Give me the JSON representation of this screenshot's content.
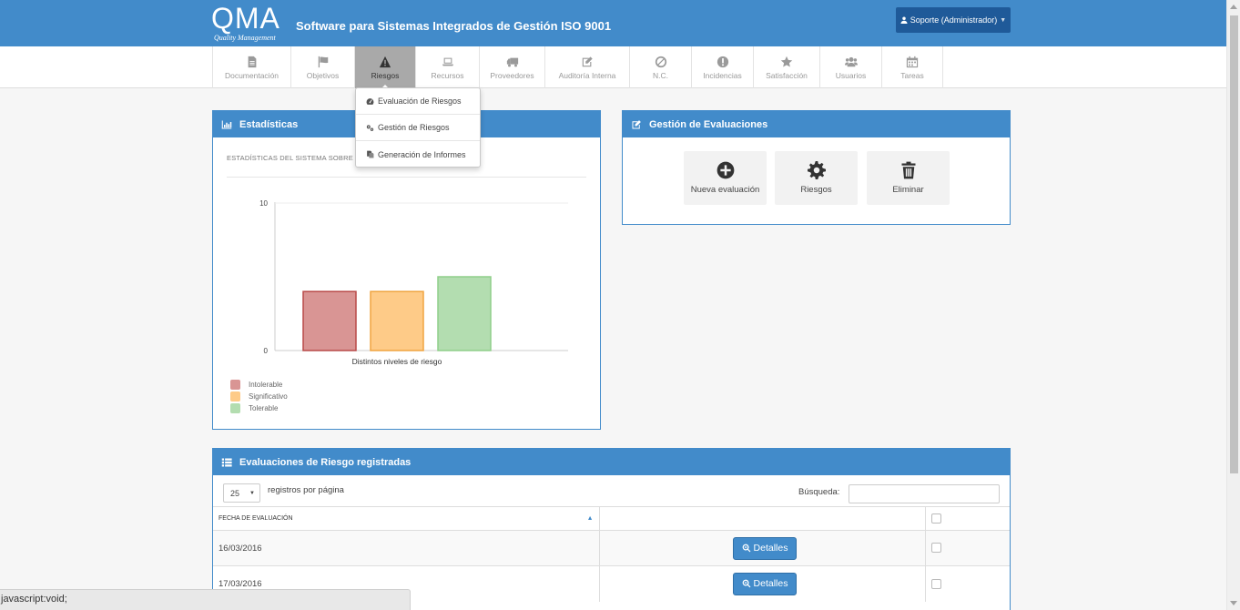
{
  "header": {
    "logo_big": "QMA",
    "logo_small": "Quality Management",
    "title": "Software para Sistemas Integrados de Gestión ISO 9001",
    "user_label": "Soporte (Administrador)"
  },
  "nav": {
    "items": [
      {
        "label": "Documentación",
        "icon": "document-icon"
      },
      {
        "label": "Objetivos",
        "icon": "flag-icon"
      },
      {
        "label": "Riesgos",
        "icon": "warning-icon"
      },
      {
        "label": "Recursos",
        "icon": "laptop-icon"
      },
      {
        "label": "Proveedores",
        "icon": "truck-icon"
      },
      {
        "label": "Auditoría Interna",
        "icon": "edit-icon"
      },
      {
        "label": "N.C.",
        "icon": "ban-icon"
      },
      {
        "label": "Incidencias",
        "icon": "exclamation-icon"
      },
      {
        "label": "Satisfacción",
        "icon": "star-icon"
      },
      {
        "label": "Usuarios",
        "icon": "users-icon"
      },
      {
        "label": "Tareas",
        "icon": "calendar-icon"
      }
    ],
    "active": "Riesgos"
  },
  "dropdown": {
    "items": [
      {
        "label": "Evaluación de Riesgos",
        "icon": "dashboard-icon"
      },
      {
        "label": "Gestión de Riesgos",
        "icon": "cogs-icon"
      },
      {
        "label": "Generación de Informes",
        "icon": "files-icon"
      }
    ]
  },
  "stats": {
    "title": "Estadísticas",
    "subtitle": "ESTADÍSTICAS DEL SISTEMA SOBRE E"
  },
  "chart_data": {
    "type": "bar",
    "categories": [
      "Intolerable",
      "Significativo",
      "Tolerable"
    ],
    "values": [
      4,
      4,
      5
    ],
    "xlabel": "Distintos niveles de riesgo",
    "ylabel": "",
    "ylim": [
      0,
      10
    ],
    "yticks": [
      "0",
      "10"
    ],
    "colors": {
      "fill": [
        "#d99594",
        "#fecb88",
        "#b3ddb0"
      ],
      "stroke": [
        "#b94a48",
        "#f0a440",
        "#8fcf8a"
      ]
    },
    "legend": [
      "Intolerable",
      "Significativo",
      "Tolerable"
    ],
    "legend_position": "bottom-left"
  },
  "gestion": {
    "title": "Gestión de Evaluaciones",
    "buttons": [
      {
        "label": "Nueva evaluación",
        "icon": "plus-circle-icon"
      },
      {
        "label": "Riesgos",
        "icon": "gear-icon"
      },
      {
        "label": "Eliminar",
        "icon": "trash-icon"
      }
    ]
  },
  "table": {
    "title": "Evaluaciones de Riesgo registradas",
    "page_size": "25",
    "per_page_label": "registros por página",
    "search_label": "Búsqueda:",
    "search_value": "",
    "columns": [
      "FECHA DE EVALUACIÓN",
      "",
      ""
    ],
    "rows": [
      {
        "date": "16/03/2016",
        "action": "Detalles"
      },
      {
        "date": "17/03/2016",
        "action": "Detalles"
      }
    ]
  },
  "statusbar": {
    "text": "javascript:void;"
  },
  "colors": {
    "primary": "#428bca",
    "active_nav": "#a9a9a9",
    "user_button": "#1f5a99"
  }
}
